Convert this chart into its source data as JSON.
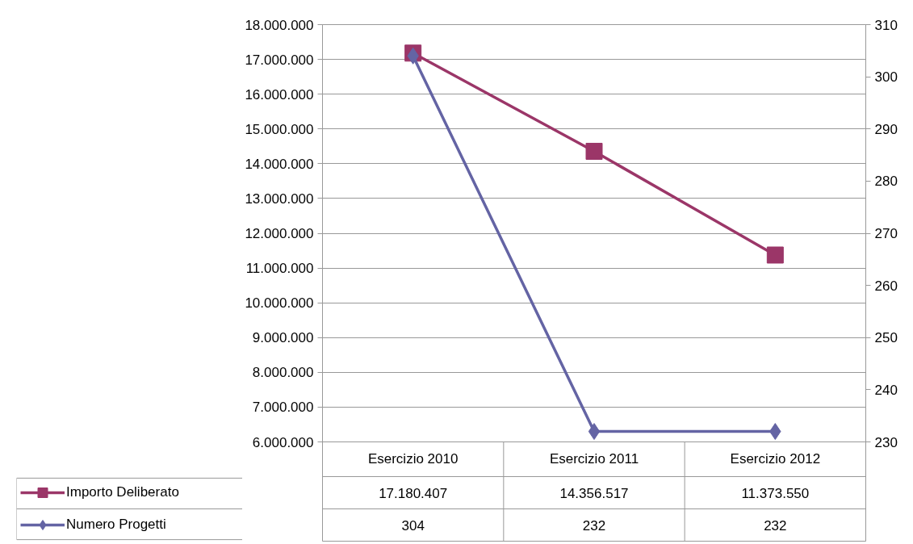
{
  "chart_data": {
    "type": "line",
    "categories": [
      "Esercizio 2010",
      "Esercizio 2011",
      "Esercizio 2012"
    ],
    "series": [
      {
        "name": "Importo Deliberato",
        "color": "#9b3668",
        "marker": "square",
        "values": [
          17180407,
          14356517,
          11373550
        ],
        "value_labels": [
          "17.180.407",
          "14.356.517",
          "11.373.550"
        ]
      },
      {
        "name": "Numero Progetti",
        "color": "#6464a4",
        "marker": "diamond",
        "axis": "y2",
        "values": [
          304,
          232,
          232
        ],
        "value_labels": [
          "304",
          "232",
          "232"
        ]
      }
    ],
    "ylim": [
      6000000,
      18000000
    ],
    "yticks": [
      {
        "value": 6000000,
        "label": "6.000.000"
      },
      {
        "value": 7000000,
        "label": "7.000.000"
      },
      {
        "value": 8000000,
        "label": "8.000.000"
      },
      {
        "value": 9000000,
        "label": "9.000.000"
      },
      {
        "value": 10000000,
        "label": "10.000.000"
      },
      {
        "value": 11000000,
        "label": "11.000.000"
      },
      {
        "value": 12000000,
        "label": "12.000.000"
      },
      {
        "value": 13000000,
        "label": "13.000.000"
      },
      {
        "value": 14000000,
        "label": "14.000.000"
      },
      {
        "value": 15000000,
        "label": "15.000.000"
      },
      {
        "value": 16000000,
        "label": "16.000.000"
      },
      {
        "value": 17000000,
        "label": "17.000.000"
      },
      {
        "value": 18000000,
        "label": "18.000.000"
      }
    ],
    "y2lim": [
      230,
      310
    ],
    "y2ticks": [
      230,
      240,
      250,
      260,
      270,
      280,
      290,
      300,
      310
    ],
    "grid": "y",
    "legend": "bottom",
    "line_style": "solid"
  }
}
